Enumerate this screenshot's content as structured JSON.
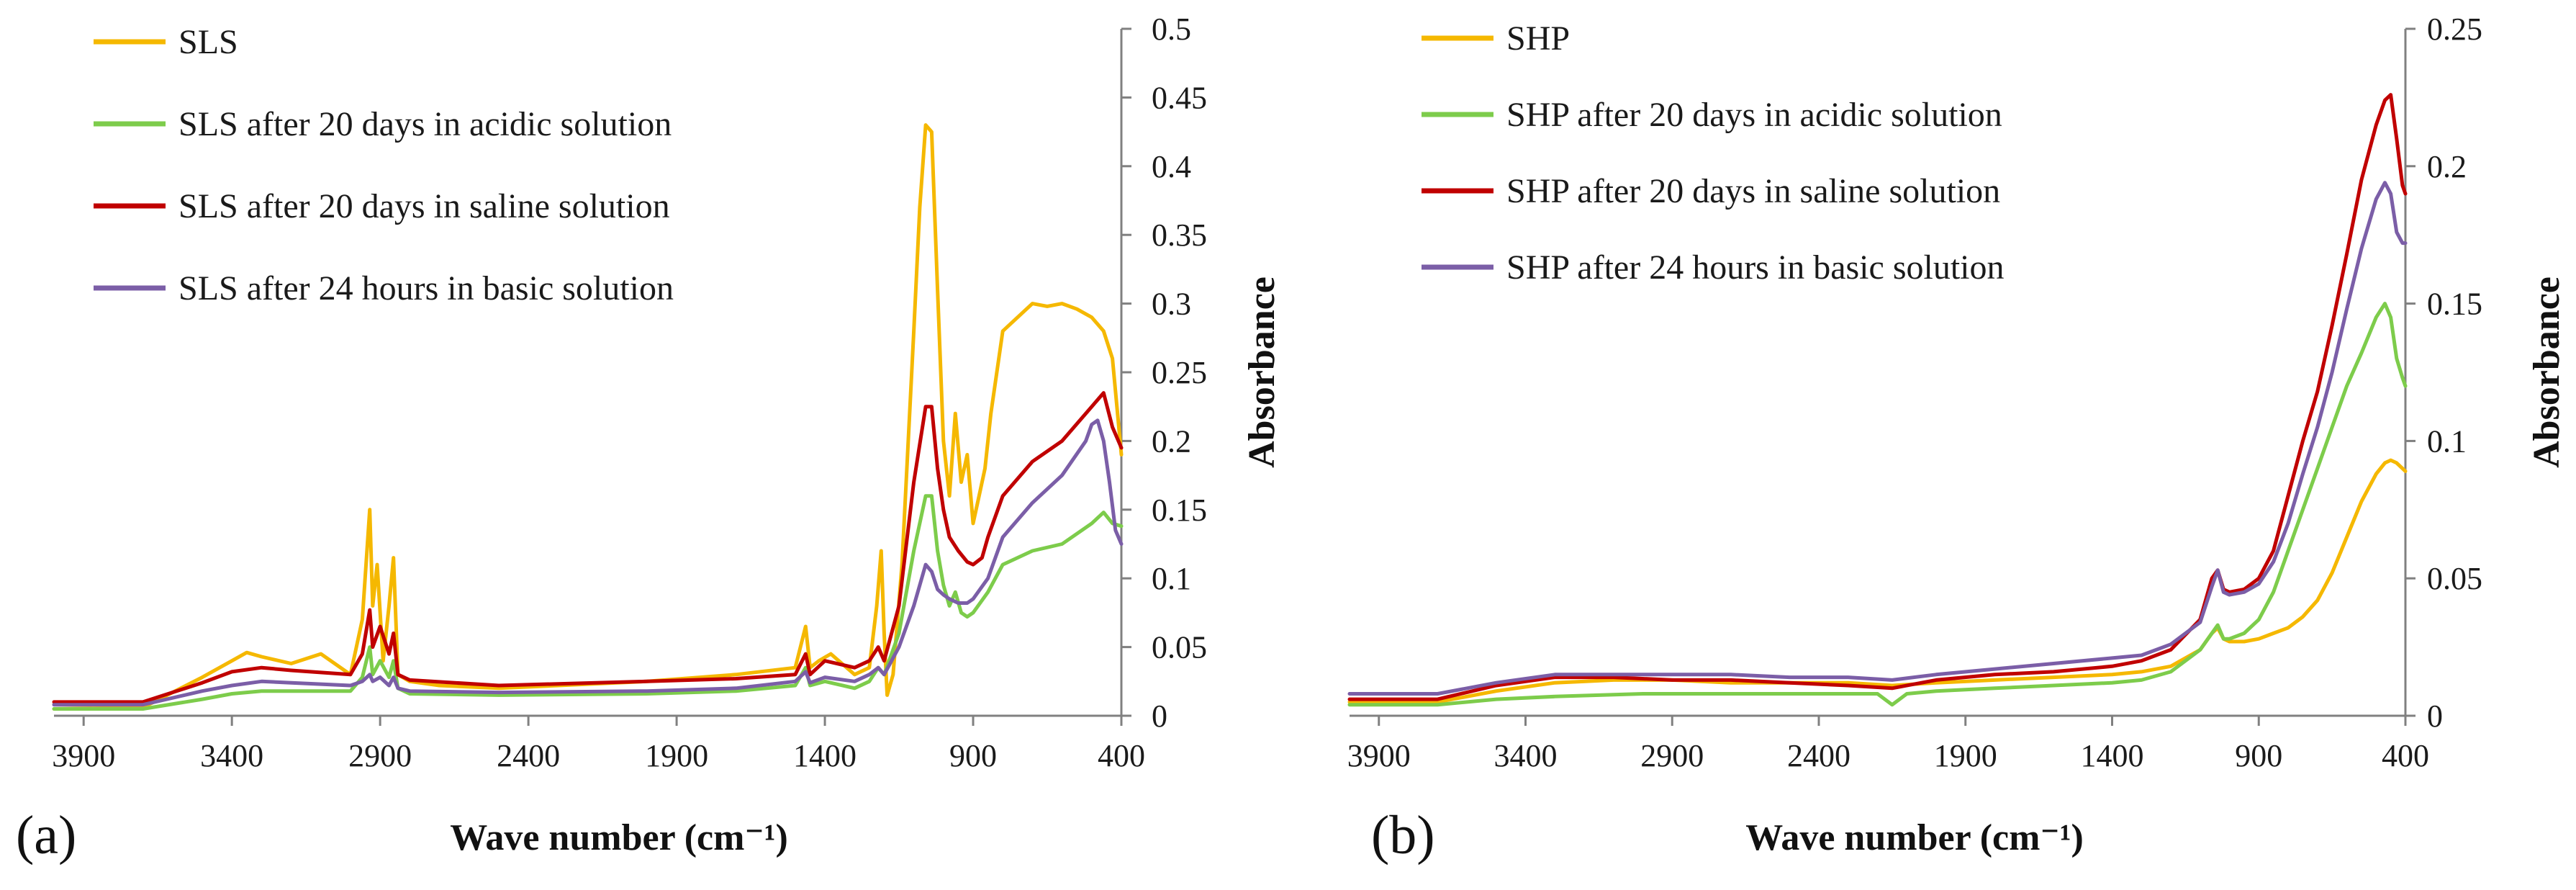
{
  "chart_data": [
    {
      "type": "line",
      "panel_label": "(a)",
      "xlabel": "Wave number (cm⁻¹)",
      "ylabel": "Absorbance",
      "xlim": [
        4000,
        400
      ],
      "x_ticks": [
        "3900",
        "3400",
        "2900",
        "2400",
        "1900",
        "1400",
        "900",
        "400"
      ],
      "ylim": [
        0,
        0.5
      ],
      "y_ticks": [
        "0",
        "0.05",
        "0.1",
        "0.15",
        "0.2",
        "0.25",
        "0.3",
        "0.35",
        "0.4",
        "0.45",
        "0.5"
      ],
      "legend_position": "top-left",
      "series": [
        {
          "name": "SLS",
          "color": "#F5B800",
          "x": [
            4000,
            3700,
            3500,
            3400,
            3350,
            3300,
            3200,
            3100,
            3000,
            2960,
            2935,
            2925,
            2910,
            2890,
            2870,
            2855,
            2840,
            2800,
            2700,
            2500,
            2000,
            1700,
            1500,
            1465,
            1450,
            1420,
            1380,
            1300,
            1250,
            1225,
            1210,
            1200,
            1190,
            1170,
            1140,
            1100,
            1080,
            1060,
            1040,
            1020,
            1000,
            980,
            960,
            940,
            920,
            900,
            880,
            860,
            840,
            800,
            750,
            700,
            650,
            600,
            550,
            500,
            460,
            430,
            400
          ],
          "y": [
            0.005,
            0.006,
            0.028,
            0.04,
            0.046,
            0.043,
            0.038,
            0.045,
            0.03,
            0.07,
            0.15,
            0.08,
            0.11,
            0.04,
            0.08,
            0.115,
            0.03,
            0.025,
            0.022,
            0.02,
            0.025,
            0.03,
            0.035,
            0.065,
            0.035,
            0.04,
            0.045,
            0.03,
            0.035,
            0.08,
            0.12,
            0.06,
            0.015,
            0.03,
            0.11,
            0.28,
            0.37,
            0.43,
            0.425,
            0.31,
            0.2,
            0.16,
            0.22,
            0.17,
            0.19,
            0.14,
            0.16,
            0.18,
            0.22,
            0.28,
            0.29,
            0.3,
            0.298,
            0.3,
            0.296,
            0.29,
            0.28,
            0.26,
            0.19
          ]
        },
        {
          "name": "SLS after 20 days in acidic solution",
          "color": "#7DCC4B",
          "x": [
            4000,
            3700,
            3500,
            3400,
            3300,
            3200,
            3000,
            2960,
            2935,
            2925,
            2900,
            2870,
            2855,
            2840,
            2800,
            2500,
            2000,
            1700,
            1500,
            1465,
            1450,
            1400,
            1300,
            1250,
            1220,
            1200,
            1150,
            1100,
            1060,
            1040,
            1020,
            1000,
            980,
            960,
            940,
            920,
            900,
            850,
            800,
            700,
            600,
            500,
            460,
            430,
            400
          ],
          "y": [
            0.005,
            0.005,
            0.012,
            0.016,
            0.018,
            0.018,
            0.018,
            0.028,
            0.05,
            0.03,
            0.04,
            0.028,
            0.04,
            0.02,
            0.016,
            0.015,
            0.016,
            0.018,
            0.022,
            0.035,
            0.022,
            0.025,
            0.02,
            0.025,
            0.035,
            0.03,
            0.06,
            0.12,
            0.16,
            0.16,
            0.12,
            0.095,
            0.08,
            0.09,
            0.075,
            0.072,
            0.075,
            0.09,
            0.11,
            0.12,
            0.125,
            0.14,
            0.148,
            0.14,
            0.138
          ]
        },
        {
          "name": "SLS after 20 days in saline solution",
          "color": "#C00000",
          "x": [
            4000,
            3700,
            3500,
            3400,
            3300,
            3200,
            3000,
            2960,
            2935,
            2925,
            2900,
            2870,
            2855,
            2840,
            2800,
            2500,
            2000,
            1700,
            1500,
            1465,
            1450,
            1400,
            1300,
            1250,
            1220,
            1200,
            1150,
            1100,
            1060,
            1040,
            1020,
            1000,
            980,
            950,
            920,
            900,
            870,
            850,
            800,
            700,
            600,
            500,
            460,
            430,
            400
          ],
          "y": [
            0.01,
            0.01,
            0.024,
            0.032,
            0.035,
            0.033,
            0.03,
            0.045,
            0.077,
            0.05,
            0.065,
            0.045,
            0.06,
            0.03,
            0.026,
            0.022,
            0.025,
            0.027,
            0.03,
            0.045,
            0.03,
            0.04,
            0.035,
            0.04,
            0.05,
            0.04,
            0.08,
            0.17,
            0.225,
            0.225,
            0.18,
            0.15,
            0.13,
            0.12,
            0.112,
            0.11,
            0.115,
            0.13,
            0.16,
            0.185,
            0.2,
            0.225,
            0.235,
            0.21,
            0.195
          ]
        },
        {
          "name": "SLS after 24 hours in basic solution",
          "color": "#7B5EA7",
          "x": [
            4000,
            3700,
            3500,
            3400,
            3300,
            3200,
            3000,
            2960,
            2935,
            2925,
            2900,
            2870,
            2855,
            2840,
            2800,
            2500,
            2000,
            1700,
            1500,
            1465,
            1450,
            1400,
            1300,
            1250,
            1220,
            1200,
            1150,
            1100,
            1060,
            1040,
            1020,
            1000,
            980,
            950,
            920,
            900,
            850,
            800,
            700,
            600,
            520,
            500,
            480,
            460,
            440,
            420,
            400
          ],
          "y": [
            0.008,
            0.008,
            0.018,
            0.022,
            0.025,
            0.024,
            0.022,
            0.025,
            0.03,
            0.025,
            0.028,
            0.022,
            0.028,
            0.02,
            0.018,
            0.017,
            0.018,
            0.02,
            0.025,
            0.032,
            0.024,
            0.028,
            0.025,
            0.03,
            0.035,
            0.03,
            0.05,
            0.08,
            0.11,
            0.105,
            0.092,
            0.088,
            0.085,
            0.082,
            0.082,
            0.085,
            0.1,
            0.13,
            0.155,
            0.175,
            0.2,
            0.212,
            0.215,
            0.2,
            0.17,
            0.135,
            0.125
          ]
        }
      ]
    },
    {
      "type": "line",
      "panel_label": "(b)",
      "xlabel": "Wave number (cm⁻¹)",
      "ylabel": "Absorbance",
      "xlim": [
        4000,
        400
      ],
      "x_ticks": [
        "3900",
        "3400",
        "2900",
        "2400",
        "1900",
        "1400",
        "900",
        "400"
      ],
      "ylim": [
        0,
        0.25
      ],
      "y_ticks": [
        "0",
        "0.05",
        "0.1",
        "0.15",
        "0.2",
        "0.25"
      ],
      "legend_position": "top-left",
      "series": [
        {
          "name": "SHP",
          "color": "#F5B800",
          "x": [
            4000,
            3700,
            3500,
            3300,
            3100,
            2900,
            2700,
            2500,
            2300,
            2150,
            2000,
            1800,
            1600,
            1400,
            1300,
            1200,
            1100,
            1060,
            1040,
            1020,
            1000,
            950,
            900,
            850,
            800,
            750,
            700,
            650,
            600,
            550,
            500,
            470,
            450,
            430,
            410,
            400
          ],
          "y": [
            0.005,
            0.005,
            0.009,
            0.012,
            0.013,
            0.013,
            0.012,
            0.012,
            0.012,
            0.011,
            0.012,
            0.013,
            0.014,
            0.015,
            0.016,
            0.018,
            0.024,
            0.03,
            0.032,
            0.028,
            0.027,
            0.027,
            0.028,
            0.03,
            0.032,
            0.036,
            0.042,
            0.052,
            0.065,
            0.078,
            0.088,
            0.092,
            0.093,
            0.092,
            0.09,
            0.089
          ]
        },
        {
          "name": "SHP after 20 days in acidic solution",
          "color": "#7DCC4B",
          "x": [
            4000,
            3700,
            3500,
            3300,
            3000,
            2700,
            2400,
            2200,
            2150,
            2100,
            2000,
            1800,
            1600,
            1400,
            1300,
            1200,
            1100,
            1060,
            1040,
            1020,
            1000,
            950,
            900,
            850,
            800,
            750,
            700,
            650,
            600,
            550,
            500,
            470,
            450,
            430,
            410,
            400
          ],
          "y": [
            0.004,
            0.004,
            0.006,
            0.007,
            0.008,
            0.008,
            0.008,
            0.008,
            0.004,
            0.008,
            0.009,
            0.01,
            0.011,
            0.012,
            0.013,
            0.016,
            0.024,
            0.03,
            0.033,
            0.028,
            0.028,
            0.03,
            0.035,
            0.045,
            0.06,
            0.075,
            0.09,
            0.105,
            0.12,
            0.132,
            0.145,
            0.15,
            0.145,
            0.13,
            0.123,
            0.12
          ]
        },
        {
          "name": "SHP after 20 days in saline solution",
          "color": "#C00000",
          "x": [
            4000,
            3700,
            3500,
            3300,
            3100,
            2900,
            2700,
            2500,
            2300,
            2150,
            2000,
            1800,
            1600,
            1400,
            1300,
            1200,
            1100,
            1060,
            1040,
            1020,
            1000,
            950,
            900,
            850,
            800,
            750,
            700,
            650,
            600,
            550,
            500,
            470,
            450,
            430,
            410,
            400
          ],
          "y": [
            0.006,
            0.006,
            0.011,
            0.014,
            0.014,
            0.013,
            0.013,
            0.012,
            0.011,
            0.01,
            0.013,
            0.015,
            0.016,
            0.018,
            0.02,
            0.024,
            0.035,
            0.05,
            0.053,
            0.046,
            0.045,
            0.046,
            0.05,
            0.06,
            0.08,
            0.1,
            0.118,
            0.142,
            0.168,
            0.195,
            0.215,
            0.224,
            0.226,
            0.21,
            0.193,
            0.19
          ]
        },
        {
          "name": "SHP after 24 hours in basic solution",
          "color": "#7B5EA7",
          "x": [
            4000,
            3700,
            3500,
            3300,
            3100,
            2900,
            2700,
            2500,
            2300,
            2150,
            2000,
            1800,
            1600,
            1400,
            1300,
            1200,
            1100,
            1060,
            1040,
            1020,
            1000,
            950,
            900,
            850,
            800,
            750,
            700,
            650,
            600,
            550,
            500,
            470,
            450,
            430,
            410,
            400
          ],
          "y": [
            0.008,
            0.008,
            0.012,
            0.015,
            0.015,
            0.015,
            0.015,
            0.014,
            0.014,
            0.013,
            0.015,
            0.017,
            0.019,
            0.021,
            0.022,
            0.026,
            0.034,
            0.047,
            0.053,
            0.045,
            0.044,
            0.045,
            0.048,
            0.056,
            0.07,
            0.088,
            0.105,
            0.125,
            0.148,
            0.17,
            0.188,
            0.194,
            0.19,
            0.176,
            0.172,
            0.172
          ]
        }
      ]
    }
  ]
}
